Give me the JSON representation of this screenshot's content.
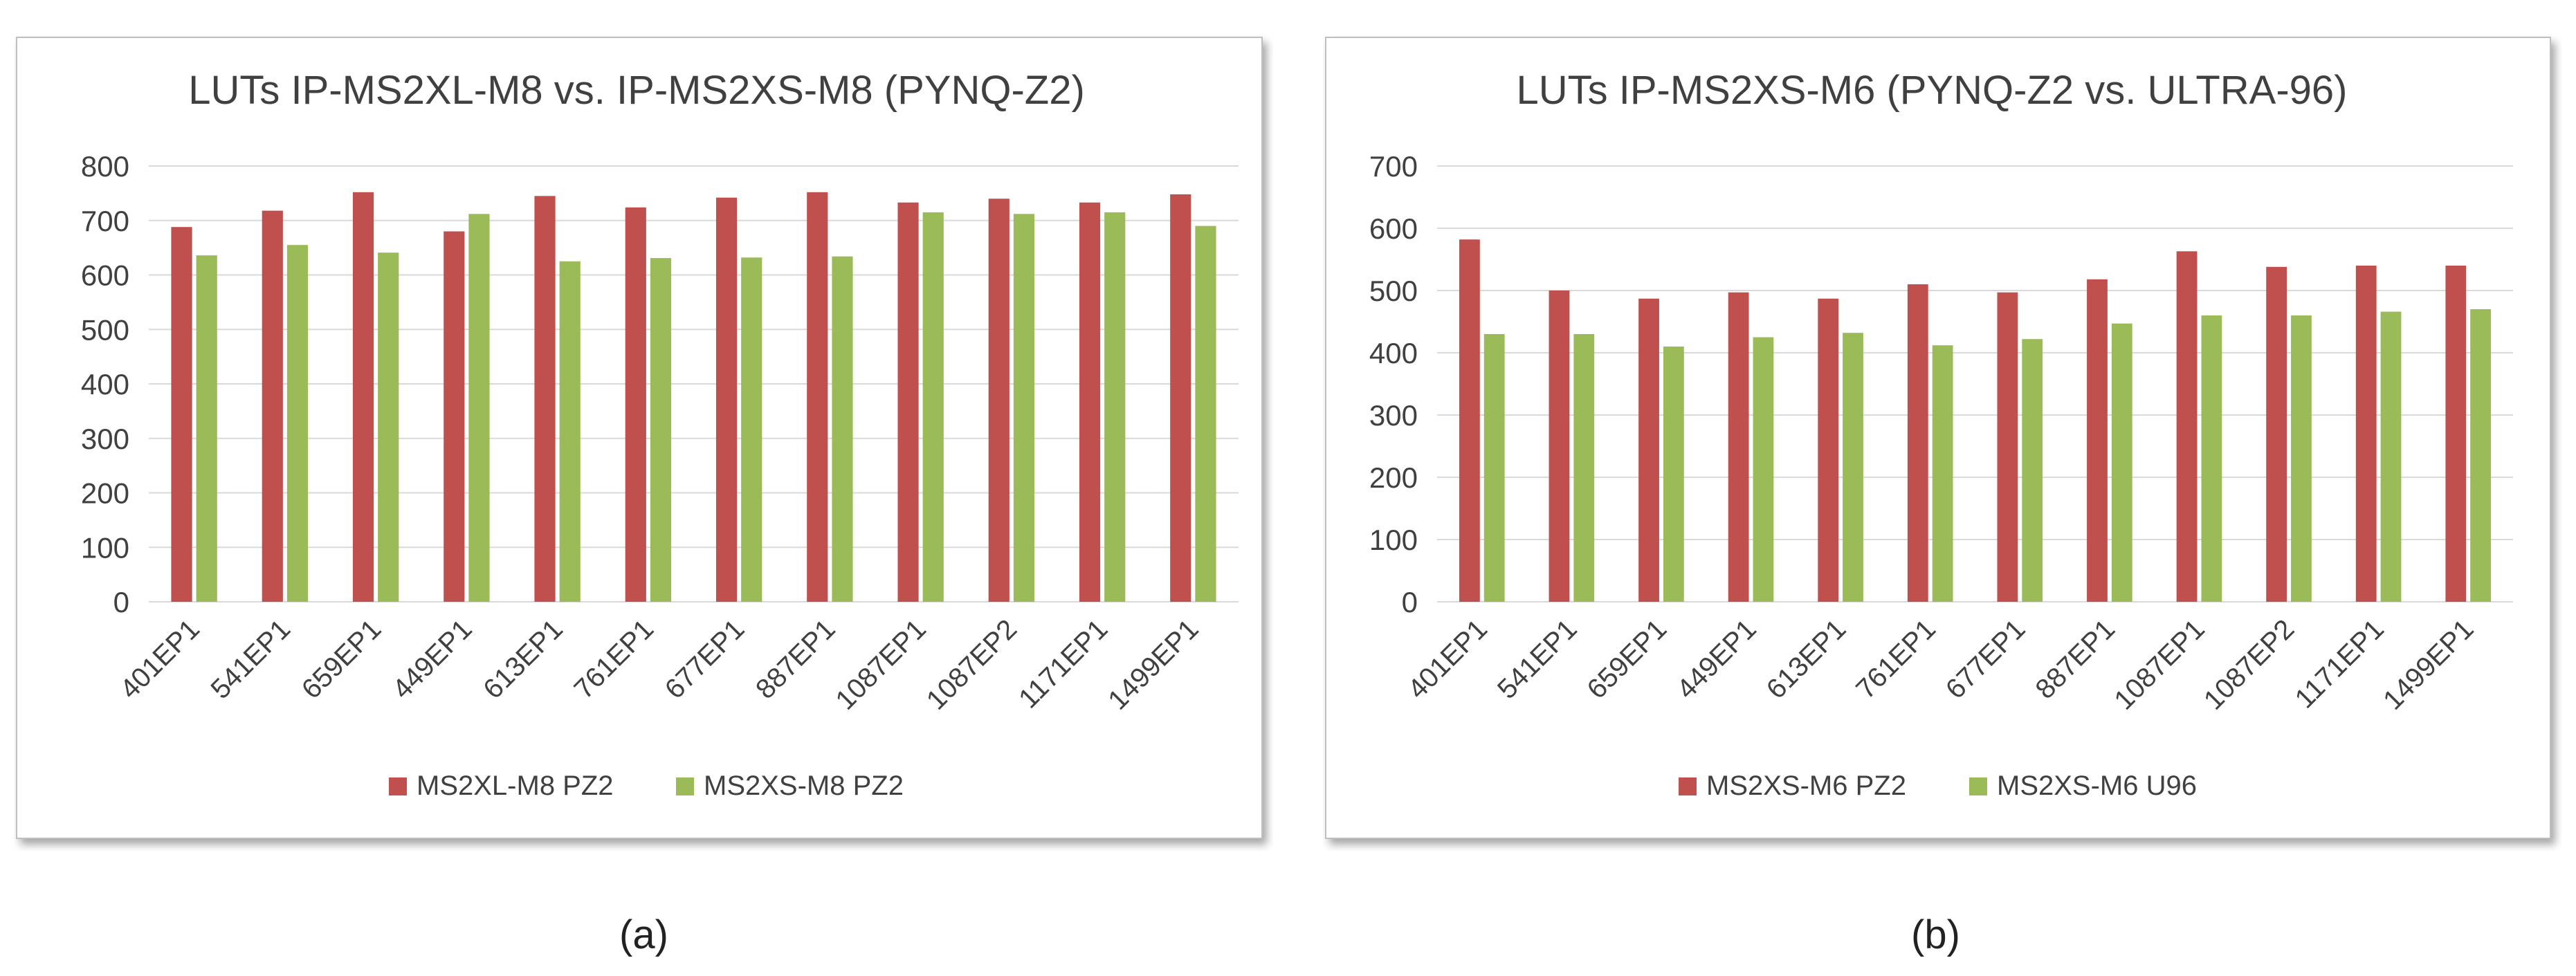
{
  "colors": {
    "series1": "#C0504D",
    "series2": "#9BBB59",
    "grid": "#D9D9D9",
    "axis_text": "#404040",
    "frame": "#BFBFBF"
  },
  "chart_data": [
    {
      "type": "bar",
      "title": "LUTs IP-MS2XL-M8 vs. IP-MS2XS-M8 (PYNQ-Z2)",
      "categories": [
        "401EP1",
        "541EP1",
        "659EP1",
        "449EP1",
        "613EP1",
        "761EP1",
        "677EP1",
        "887EP1",
        "1087EP1",
        "1087EP2",
        "1171EP1",
        "1499EP1"
      ],
      "series": [
        {
          "name": "MS2XL-M8 PZ2",
          "values": [
            688,
            718,
            752,
            680,
            745,
            724,
            742,
            752,
            733,
            740,
            733,
            748
          ]
        },
        {
          "name": "MS2XS-M8 PZ2",
          "values": [
            636,
            655,
            641,
            712,
            625,
            631,
            632,
            634,
            715,
            712,
            715,
            690
          ]
        }
      ],
      "xlabel": "",
      "ylabel": "",
      "ylim": [
        0,
        800
      ],
      "yticks": [
        0,
        100,
        200,
        300,
        400,
        500,
        600,
        700,
        800
      ],
      "grid": true,
      "legend": "bottom",
      "caption": "(a)"
    },
    {
      "type": "bar",
      "title": "LUTs IP-MS2XS-M6 (PYNQ-Z2 vs. ULTRA-96)",
      "categories": [
        "401EP1",
        "541EP1",
        "659EP1",
        "449EP1",
        "613EP1",
        "761EP1",
        "677EP1",
        "887EP1",
        "1087EP1",
        "1087EP2",
        "1171EP1",
        "1499EP1"
      ],
      "series": [
        {
          "name": "MS2XS-M6 PZ2",
          "values": [
            582,
            500,
            487,
            497,
            487,
            510,
            497,
            518,
            563,
            538,
            540,
            540
          ]
        },
        {
          "name": "MS2XS-M6 U96",
          "values": [
            430,
            430,
            410,
            425,
            432,
            412,
            422,
            447,
            460,
            460,
            466,
            470
          ]
        }
      ],
      "xlabel": "",
      "ylabel": "",
      "ylim": [
        0,
        700
      ],
      "yticks": [
        0,
        100,
        200,
        300,
        400,
        500,
        600,
        700
      ],
      "grid": true,
      "legend": "bottom",
      "caption": "(b)"
    }
  ]
}
